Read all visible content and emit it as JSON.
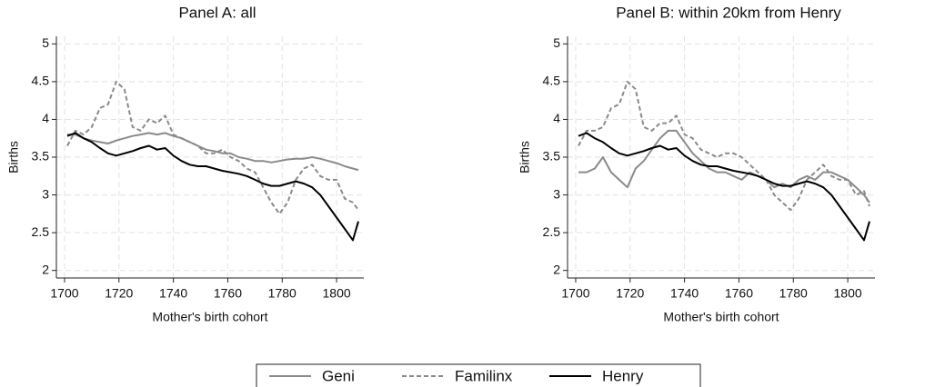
{
  "chart_data": [
    {
      "type": "line",
      "title": "Panel A: all",
      "x_label": "Mother's birth cohort",
      "y_label": "Births",
      "x": [
        1701,
        1704,
        1707,
        1710,
        1713,
        1716,
        1719,
        1722,
        1725,
        1728,
        1731,
        1734,
        1737,
        1740,
        1743,
        1746,
        1749,
        1752,
        1755,
        1758,
        1761,
        1764,
        1767,
        1770,
        1773,
        1776,
        1779,
        1782,
        1785,
        1788,
        1791,
        1794,
        1797,
        1800,
        1803,
        1806,
        1808
      ],
      "series": [
        {
          "name": "Geni",
          "color": "#8a8a8a",
          "dash": false,
          "values": [
            3.8,
            3.8,
            3.75,
            3.72,
            3.7,
            3.68,
            3.72,
            3.75,
            3.78,
            3.8,
            3.82,
            3.8,
            3.82,
            3.78,
            3.75,
            3.7,
            3.65,
            3.6,
            3.58,
            3.55,
            3.55,
            3.5,
            3.48,
            3.45,
            3.45,
            3.43,
            3.45,
            3.47,
            3.48,
            3.48,
            3.5,
            3.48,
            3.45,
            3.42,
            3.38,
            3.35,
            3.33
          ]
        },
        {
          "name": "Familinx",
          "color": "#8a8a8a",
          "dash": true,
          "values": [
            3.65,
            3.85,
            3.8,
            3.9,
            4.15,
            4.2,
            4.5,
            4.4,
            3.9,
            3.85,
            4.0,
            3.95,
            4.05,
            3.8,
            3.75,
            3.7,
            3.65,
            3.55,
            3.55,
            3.6,
            3.5,
            3.45,
            3.35,
            3.3,
            3.1,
            2.9,
            2.75,
            2.9,
            3.2,
            3.35,
            3.4,
            3.25,
            3.2,
            3.2,
            2.95,
            2.9,
            2.8
          ]
        },
        {
          "name": "Henry",
          "color": "#000000",
          "dash": false,
          "values": [
            3.78,
            3.82,
            3.75,
            3.7,
            3.62,
            3.55,
            3.52,
            3.55,
            3.58,
            3.62,
            3.65,
            3.6,
            3.62,
            3.52,
            3.45,
            3.4,
            3.38,
            3.38,
            3.35,
            3.32,
            3.3,
            3.28,
            3.25,
            3.2,
            3.15,
            3.12,
            3.12,
            3.15,
            3.18,
            3.15,
            3.1,
            3.0,
            2.85,
            2.7,
            2.55,
            2.4,
            2.65
          ]
        }
      ],
      "xlim": [
        1697,
        1810
      ],
      "ylim": [
        1.9,
        5.1
      ],
      "xticks": [
        1700,
        1720,
        1740,
        1760,
        1780,
        1800
      ],
      "yticks": [
        2,
        2.5,
        3,
        3.5,
        4,
        4.5,
        5
      ],
      "grid": true
    },
    {
      "type": "line",
      "title": "Panel B: within 20km from Henry",
      "x_label": "Mother's birth cohort",
      "y_label": "Births",
      "x": [
        1701,
        1704,
        1707,
        1710,
        1713,
        1716,
        1719,
        1722,
        1725,
        1728,
        1731,
        1734,
        1737,
        1740,
        1743,
        1746,
        1749,
        1752,
        1755,
        1758,
        1761,
        1764,
        1767,
        1770,
        1773,
        1776,
        1779,
        1782,
        1785,
        1788,
        1791,
        1794,
        1797,
        1800,
        1803,
        1806,
        1808
      ],
      "series": [
        {
          "color": "#8a8a8a",
          "dash": false,
          "values": [
            3.3,
            3.3,
            3.35,
            3.5,
            3.3,
            3.2,
            3.1,
            3.35,
            3.45,
            3.6,
            3.75,
            3.85,
            3.85,
            3.7,
            3.55,
            3.45,
            3.35,
            3.3,
            3.3,
            3.25,
            3.2,
            3.3,
            3.25,
            3.2,
            3.1,
            3.15,
            3.1,
            3.2,
            3.25,
            3.2,
            3.3,
            3.3,
            3.25,
            3.2,
            3.1,
            3.0,
            2.9
          ]
        },
        {
          "color": "#8a8a8a",
          "dash": true,
          "values": [
            3.65,
            3.85,
            3.85,
            3.9,
            4.15,
            4.2,
            4.5,
            4.4,
            3.9,
            3.85,
            3.95,
            3.95,
            4.05,
            3.8,
            3.75,
            3.6,
            3.55,
            3.5,
            3.55,
            3.55,
            3.5,
            3.4,
            3.3,
            3.2,
            3.0,
            2.9,
            2.8,
            2.95,
            3.2,
            3.3,
            3.4,
            3.25,
            3.2,
            3.2,
            3.0,
            3.05,
            2.85
          ]
        },
        {
          "color": "#000000",
          "dash": false,
          "values": [
            3.78,
            3.82,
            3.75,
            3.7,
            3.62,
            3.55,
            3.52,
            3.55,
            3.58,
            3.62,
            3.65,
            3.6,
            3.62,
            3.52,
            3.45,
            3.4,
            3.38,
            3.38,
            3.35,
            3.32,
            3.3,
            3.28,
            3.25,
            3.2,
            3.15,
            3.12,
            3.12,
            3.15,
            3.18,
            3.15,
            3.1,
            3.0,
            2.85,
            2.7,
            2.55,
            2.4,
            2.65
          ]
        }
      ],
      "xlim": [
        1697,
        1810
      ],
      "ylim": [
        1.9,
        5.1
      ],
      "xticks": [
        1700,
        1720,
        1740,
        1760,
        1780,
        1800
      ],
      "yticks": [
        2,
        2.5,
        3,
        3.5,
        4,
        4.5,
        5
      ],
      "grid": true
    }
  ]
}
